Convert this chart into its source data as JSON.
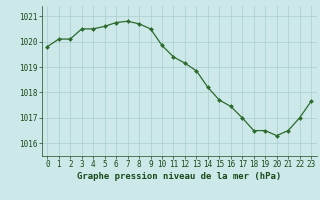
{
  "hours": [
    0,
    1,
    2,
    3,
    4,
    5,
    6,
    7,
    8,
    9,
    10,
    11,
    12,
    13,
    14,
    15,
    16,
    17,
    18,
    19,
    20,
    21,
    22,
    23
  ],
  "pressure": [
    1019.8,
    1020.1,
    1020.1,
    1020.5,
    1020.5,
    1020.6,
    1020.75,
    1020.8,
    1020.7,
    1020.5,
    1019.85,
    1019.4,
    1019.15,
    1018.85,
    1018.2,
    1017.7,
    1017.45,
    1017.0,
    1016.5,
    1016.5,
    1016.3,
    1016.5,
    1017.0,
    1017.65
  ],
  "line_color": "#2d6a2d",
  "marker_color": "#2d6a2d",
  "bg_color": "#cce8e8",
  "grid_color": "#aacece",
  "xlabel": "Graphe pression niveau de la mer (hPa)",
  "xlabel_color": "#1a4a1a",
  "tick_color": "#1a4a1a",
  "ylim": [
    1015.5,
    1021.4
  ],
  "yticks": [
    1016,
    1017,
    1018,
    1019,
    1020,
    1021
  ],
  "xticks": [
    0,
    1,
    2,
    3,
    4,
    5,
    6,
    7,
    8,
    9,
    10,
    11,
    12,
    13,
    14,
    15,
    16,
    17,
    18,
    19,
    20,
    21,
    22,
    23
  ],
  "font_size_label": 6.5,
  "font_size_tick": 5.5
}
